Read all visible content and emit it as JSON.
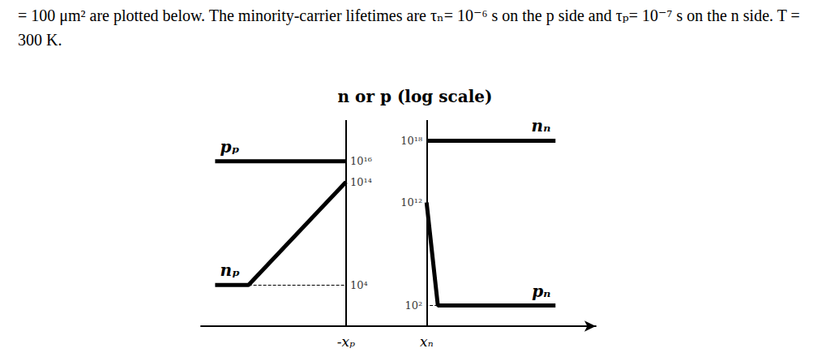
{
  "caption": "= 100 μm² are plotted below. The minority-carrier lifetimes are τₙ= 10⁻⁶ s on the p side and τₚ= 10⁻⁷ s on the n side. T = 300 K.",
  "chart_data": {
    "type": "line",
    "title": "n or p (log scale)",
    "log": "y",
    "grid": false,
    "xlim": [
      -4.6,
      5.2
    ],
    "xticks": [
      {
        "value": -1,
        "label": "-xₚ"
      },
      {
        "value": 1,
        "label": "xₙ"
      }
    ],
    "ylim": [
      1,
      1e+20
    ],
    "yticks": [
      {
        "value": 1e+16,
        "label": "10¹⁶"
      },
      {
        "value": 100000000000000.0,
        "label": "10¹⁴"
      },
      {
        "value": 10000.0,
        "label": "10⁴"
      }
    ],
    "y2lim": [
      1,
      1e+20
    ],
    "y2ticks": [
      {
        "value": 1e+18,
        "label": "10¹⁸"
      },
      {
        "value": 1000000000000.0,
        "label": "10¹²"
      },
      {
        "value": 100.0,
        "label": "10²"
      }
    ],
    "series": [
      {
        "name": "pₚ",
        "color": "#000000",
        "x": [
          -4.25,
          -1
        ],
        "values": [
          1e+16,
          1e+16
        ]
      },
      {
        "name": "nₚ",
        "color": "#000000",
        "x": [
          -4.25,
          -3.42,
          -1
        ],
        "values": [
          10000.0,
          10000.0,
          100000000000000.0
        ]
      },
      {
        "name": "nₙ",
        "color": "#000000",
        "axis": "y2",
        "x": [
          1,
          4.2
        ],
        "values": [
          1e+18,
          1e+18
        ]
      },
      {
        "name": "pₙ",
        "color": "#000000",
        "axis": "y2",
        "x": [
          1,
          1.28,
          4.2
        ],
        "values": [
          1000000000000.0,
          100.0,
          100.0
        ]
      }
    ]
  }
}
